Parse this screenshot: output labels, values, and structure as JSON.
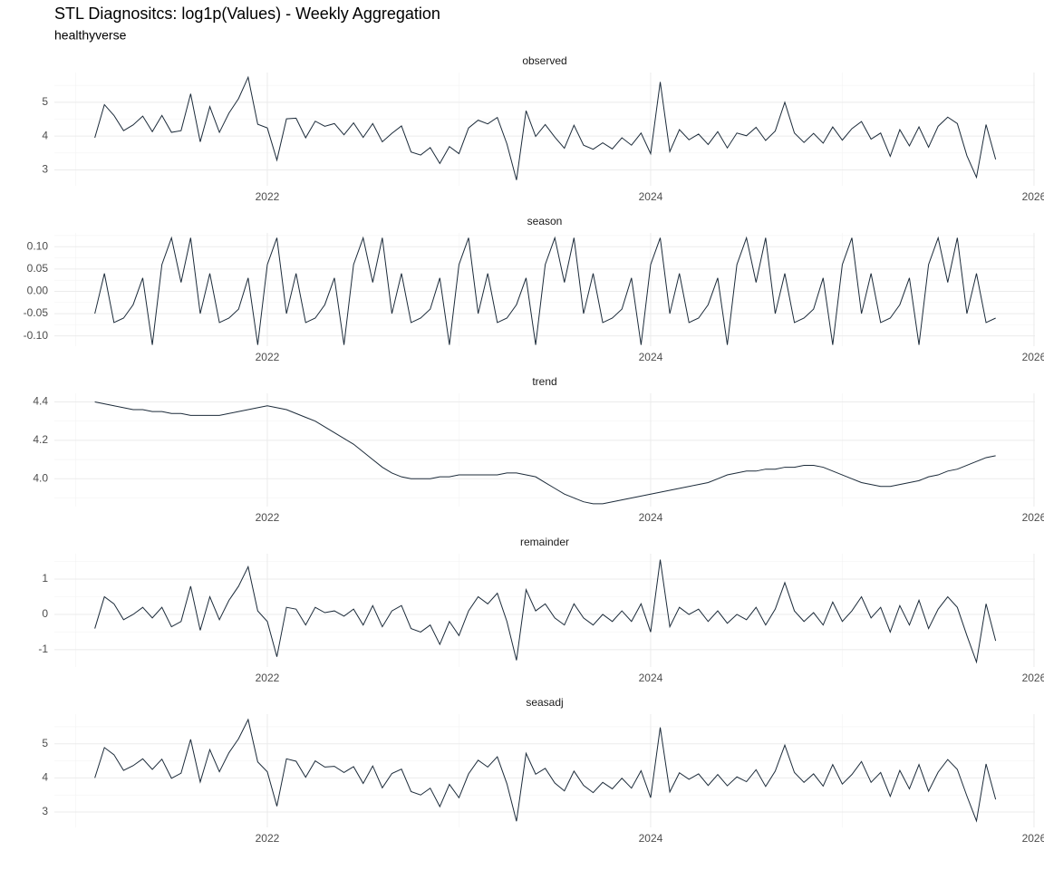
{
  "chart_data": {
    "type": "line",
    "title": "STL Diagnositcs: log1p(Values) - Weekly Aggregation",
    "subtitle": "healthyverse",
    "color": "#1c2b3a",
    "grid": true,
    "xlim": [
      2020.889,
      2026.005
    ],
    "xticks": [
      2022,
      2024,
      2026
    ],
    "x": [
      2021.1,
      2021.15,
      2021.2,
      2021.25,
      2021.3,
      2021.35,
      2021.4,
      2021.45,
      2021.5,
      2021.55,
      2021.6,
      2021.65,
      2021.7,
      2021.75,
      2021.8,
      2021.85,
      2021.9,
      2021.95,
      2022,
      2022.05,
      2022.1,
      2022.15,
      2022.2,
      2022.25,
      2022.3,
      2022.35,
      2022.4,
      2022.45,
      2022.5,
      2022.55,
      2022.6,
      2022.65,
      2022.7,
      2022.75,
      2022.8,
      2022.85,
      2022.9,
      2022.95,
      2023,
      2023.05,
      2023.1,
      2023.15,
      2023.2,
      2023.25,
      2023.3,
      2023.35,
      2023.4,
      2023.45,
      2023.5,
      2023.55,
      2023.6,
      2023.65,
      2023.7,
      2023.75,
      2023.8,
      2023.85,
      2023.9,
      2023.95,
      2024,
      2024.05,
      2024.1,
      2024.15,
      2024.2,
      2024.25,
      2024.3,
      2024.35,
      2024.4,
      2024.45,
      2024.5,
      2024.55,
      2024.6,
      2024.65,
      2024.7,
      2024.75,
      2024.8,
      2024.85,
      2024.9,
      2024.95,
      2025,
      2025.05,
      2025.1,
      2025.15,
      2025.2,
      2025.25,
      2025.3,
      2025.35,
      2025.4,
      2025.45,
      2025.5,
      2025.55,
      2025.6,
      2025.65,
      2025.7,
      2025.75,
      2025.8
    ],
    "panels": [
      {
        "title": "observed",
        "ylim": [
          2.53,
          5.88
        ],
        "yticks": [
          3,
          4,
          5
        ],
        "values": [
          3.95,
          4.93,
          4.61,
          4.16,
          4.33,
          4.59,
          4.13,
          4.61,
          4.11,
          4.16,
          5.25,
          3.83,
          4.87,
          4.11,
          4.68,
          5.11,
          5.74,
          4.35,
          4.24,
          3.29,
          4.51,
          4.53,
          3.95,
          4.44,
          4.29,
          4.37,
          4.04,
          4.39,
          3.96,
          4.37,
          3.83,
          4.08,
          4.3,
          3.53,
          3.44,
          3.66,
          3.19,
          3.69,
          3.48,
          4.24,
          4.47,
          4.36,
          4.55,
          3.77,
          2.7,
          4.75,
          3.99,
          4.34,
          3.97,
          3.64,
          4.32,
          3.73,
          3.61,
          3.8,
          3.62,
          3.95,
          3.73,
          4.09,
          3.48,
          5.6,
          3.54,
          4.19,
          3.89,
          4.06,
          3.75,
          4.13,
          3.65,
          4.09,
          4.01,
          4.26,
          3.87,
          4.15,
          5.0,
          4.09,
          3.81,
          4.08,
          3.79,
          4.27,
          3.88,
          4.22,
          4.43,
          3.91,
          4.09,
          3.4,
          4.19,
          3.71,
          4.27,
          3.67,
          4.29,
          4.56,
          4.37,
          3.42,
          2.78,
          4.34,
          3.31
        ]
      },
      {
        "title": "season",
        "ylim": [
          -0.123,
          0.131
        ],
        "yticks": [
          {
            "value": -0.1,
            "label": "-0.10"
          },
          {
            "value": -0.05,
            "label": "-0.05"
          },
          {
            "value": 0,
            "label": "0.00"
          },
          {
            "value": 0.05,
            "label": "0.05"
          },
          {
            "value": 0.1,
            "label": "0.10"
          }
        ],
        "values": [
          -0.05,
          0.04,
          -0.07,
          -0.06,
          -0.03,
          0.03,
          -0.12,
          0.06,
          0.12,
          0.02,
          0.12,
          -0.05,
          0.04,
          -0.07,
          -0.06,
          -0.04,
          0.03,
          -0.12,
          0.06,
          0.12,
          -0.05,
          0.04,
          -0.07,
          -0.06,
          -0.03,
          0.03,
          -0.12,
          0.06,
          0.12,
          0.02,
          0.12,
          -0.05,
          0.04,
          -0.07,
          -0.06,
          -0.04,
          0.03,
          -0.12,
          0.06,
          0.12,
          -0.05,
          0.04,
          -0.07,
          -0.06,
          -0.03,
          0.03,
          -0.12,
          0.06,
          0.12,
          0.02,
          0.12,
          -0.05,
          0.04,
          -0.07,
          -0.06,
          -0.04,
          0.03,
          -0.12,
          0.06,
          0.12,
          -0.05,
          0.04,
          -0.07,
          -0.06,
          -0.03,
          0.03,
          -0.12,
          0.06,
          0.12,
          0.02,
          0.12,
          -0.05,
          0.04,
          -0.07,
          -0.06,
          -0.04,
          0.03,
          -0.12,
          0.06,
          0.12,
          -0.05,
          0.04,
          -0.07,
          -0.06,
          -0.03,
          0.03,
          -0.12,
          0.06,
          0.12,
          0.02,
          0.12,
          -0.05,
          0.04,
          -0.07,
          -0.06
        ]
      },
      {
        "title": "trend",
        "ylim": [
          3.855,
          4.445
        ],
        "yticks": [
          {
            "value": 4,
            "label": "4.0"
          },
          4.2,
          4.4
        ],
        "values": [
          4.4,
          4.39,
          4.38,
          4.37,
          4.36,
          4.36,
          4.35,
          4.35,
          4.34,
          4.34,
          4.33,
          4.33,
          4.33,
          4.33,
          4.34,
          4.35,
          4.36,
          4.37,
          4.38,
          4.37,
          4.36,
          4.34,
          4.32,
          4.3,
          4.27,
          4.24,
          4.21,
          4.18,
          4.14,
          4.1,
          4.06,
          4.03,
          4.01,
          4.0,
          4.0,
          4.0,
          4.01,
          4.01,
          4.02,
          4.02,
          4.02,
          4.02,
          4.02,
          4.03,
          4.03,
          4.02,
          4.01,
          3.98,
          3.95,
          3.92,
          3.9,
          3.88,
          3.87,
          3.87,
          3.88,
          3.89,
          3.9,
          3.91,
          3.92,
          3.93,
          3.94,
          3.95,
          3.96,
          3.97,
          3.98,
          4.0,
          4.02,
          4.03,
          4.04,
          4.04,
          4.05,
          4.05,
          4.06,
          4.06,
          4.07,
          4.07,
          4.06,
          4.04,
          4.02,
          4.0,
          3.98,
          3.97,
          3.96,
          3.96,
          3.97,
          3.98,
          3.99,
          4.01,
          4.02,
          4.04,
          4.05,
          4.07,
          4.09,
          4.11,
          4.12
        ]
      },
      {
        "title": "remainder",
        "ylim": [
          -1.49,
          1.72
        ],
        "yticks": [
          -1,
          0,
          1
        ],
        "values": [
          -0.4,
          0.5,
          0.3,
          -0.15,
          0,
          0.2,
          -0.1,
          0.2,
          -0.35,
          -0.2,
          0.8,
          -0.45,
          0.5,
          -0.15,
          0.4,
          0.8,
          1.35,
          0.1,
          -0.2,
          -1.2,
          0.2,
          0.15,
          -0.3,
          0.2,
          0.05,
          0.1,
          -0.05,
          0.15,
          -0.3,
          0.25,
          -0.35,
          0.1,
          0.25,
          -0.4,
          -0.5,
          -0.3,
          -0.85,
          -0.2,
          -0.6,
          0.1,
          0.5,
          0.3,
          0.6,
          -0.2,
          -1.3,
          0.7,
          0.1,
          0.3,
          -0.1,
          -0.3,
          0.3,
          -0.1,
          -0.3,
          0,
          -0.2,
          0.1,
          -0.2,
          0.3,
          -0.5,
          1.55,
          -0.35,
          0.2,
          0,
          0.15,
          -0.2,
          0.1,
          -0.25,
          0,
          -0.15,
          0.2,
          -0.3,
          0.15,
          0.9,
          0.1,
          -0.2,
          0.05,
          -0.3,
          0.35,
          -0.2,
          0.1,
          0.5,
          -0.1,
          0.2,
          -0.5,
          0.25,
          -0.3,
          0.4,
          -0.4,
          0.15,
          0.5,
          0.2,
          -0.6,
          -1.35,
          0.3,
          -0.75
        ]
      },
      {
        "title": "seasadj",
        "ylim": [
          2.55,
          5.87
        ],
        "yticks": [
          3,
          4,
          5
        ],
        "values": [
          4.0,
          4.89,
          4.68,
          4.22,
          4.36,
          4.56,
          4.25,
          4.55,
          3.99,
          4.14,
          5.13,
          3.88,
          4.83,
          4.18,
          4.74,
          5.15,
          5.71,
          4.47,
          4.18,
          3.17,
          4.56,
          4.49,
          4.02,
          4.5,
          4.32,
          4.34,
          4.16,
          4.33,
          3.84,
          4.35,
          3.71,
          4.13,
          4.26,
          3.6,
          3.5,
          3.7,
          3.16,
          3.81,
          3.42,
          4.12,
          4.52,
          4.32,
          4.62,
          3.83,
          2.73,
          4.72,
          4.11,
          4.28,
          3.85,
          3.62,
          4.2,
          3.78,
          3.57,
          3.87,
          3.68,
          3.99,
          3.7,
          4.21,
          3.42,
          5.48,
          3.59,
          4.15,
          3.96,
          4.12,
          3.78,
          4.1,
          3.77,
          4.03,
          3.89,
          4.24,
          3.75,
          4.2,
          4.96,
          4.16,
          3.87,
          4.12,
          3.76,
          4.39,
          3.82,
          4.1,
          4.48,
          3.87,
          4.16,
          3.46,
          4.22,
          3.68,
          4.39,
          3.61,
          4.17,
          4.54,
          4.25,
          3.47,
          2.74,
          4.41,
          3.37
        ]
      }
    ]
  }
}
